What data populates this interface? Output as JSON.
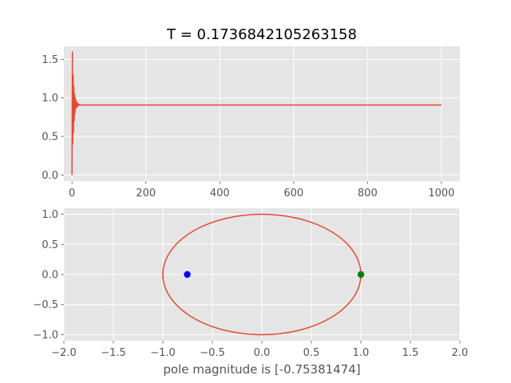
{
  "figure_title": "T = 0.1736842105263158",
  "chart_data": [
    {
      "type": "line",
      "title": "T = 0.1736842105263158",
      "xlabel": "",
      "ylabel": "",
      "xlim": [
        -22,
        1050
      ],
      "ylim": [
        -0.08,
        1.67
      ],
      "xticks": [
        0,
        200,
        400,
        600,
        800,
        1000
      ],
      "xtick_labels": [
        "0",
        "200",
        "400",
        "600",
        "800",
        "1000"
      ],
      "yticks": [
        0.0,
        0.5,
        1.0,
        1.5
      ],
      "ytick_labels": [
        "0.0",
        "0.5",
        "1.0",
        "1.5"
      ],
      "grid": true,
      "series": [
        {
          "color": "#E24A33",
          "x": [
            0,
            1,
            2,
            3,
            4,
            5,
            6,
            7,
            8,
            9,
            10,
            12,
            14,
            16,
            18,
            20,
            25,
            30,
            40,
            1000
          ],
          "y": [
            0.0,
            1.6,
            0.4,
            1.3,
            0.55,
            1.15,
            0.7,
            1.05,
            0.8,
            1.0,
            0.86,
            0.96,
            0.88,
            0.93,
            0.9,
            0.915,
            0.906,
            0.908,
            0.907,
            0.907
          ]
        }
      ]
    },
    {
      "type": "scatter",
      "xlabel": "pole magnitude is [-0.75381474]",
      "ylabel": "",
      "xlim": [
        -2.0,
        2.0
      ],
      "ylim": [
        -1.1,
        1.1
      ],
      "xticks": [
        -2.0,
        -1.5,
        -1.0,
        -0.5,
        0.0,
        0.5,
        1.0,
        1.5,
        2.0
      ],
      "xtick_labels": [
        "−2.0",
        "−1.5",
        "−1.0",
        "−0.5",
        "0.0",
        "0.5",
        "1.0",
        "1.5",
        "2.0"
      ],
      "yticks": [
        -1.0,
        -0.5,
        0.0,
        0.5,
        1.0
      ],
      "ytick_labels": [
        "−1.0",
        "−0.5",
        "0.0",
        "0.5",
        "1.0"
      ],
      "grid": true,
      "unit_circle": {
        "radius": 1.0,
        "color": "#E24A33"
      },
      "points": [
        {
          "x": -0.75381474,
          "y": 0.0,
          "color": "#0000FF"
        },
        {
          "x": 1.0,
          "y": 0.0,
          "color": "#008000"
        }
      ]
    }
  ]
}
